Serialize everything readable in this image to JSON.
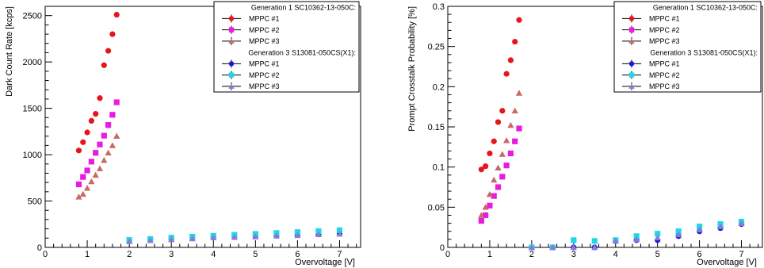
{
  "chart_data": [
    {
      "type": "scatter",
      "xlabel": "Overvoltage [V]",
      "ylabel": "Dark Count Rate [kcps]",
      "xlim": [
        0,
        7.5
      ],
      "ylim": [
        0,
        2600
      ],
      "xticks": [
        "0",
        "1",
        "2",
        "3",
        "4",
        "5",
        "6",
        "7"
      ],
      "yticks": [
        "0",
        "500",
        "1000",
        "1500",
        "2000",
        "2500"
      ],
      "xtick_values": [
        0,
        1,
        2,
        3,
        4,
        5,
        6,
        7
      ],
      "ytick_values": [
        0,
        500,
        1000,
        1500,
        2000,
        2500
      ],
      "legend_placement": "top-right",
      "legend_groups": [
        "Generation 1 SC10362-13-050C:",
        "Generation 3 S13081-050CS(X1):"
      ],
      "series": [
        {
          "name": "MPPC #1",
          "group": 0,
          "color": "#e8141b",
          "marker": "circle",
          "x": [
            0.8,
            0.9,
            1.0,
            1.1,
            1.2,
            1.3,
            1.4,
            1.5,
            1.6,
            1.7
          ],
          "y": [
            1045,
            1135,
            1240,
            1365,
            1440,
            1610,
            1965,
            2120,
            2300,
            2510
          ]
        },
        {
          "name": "MPPC #2",
          "group": 0,
          "color": "#e81ce0",
          "marker": "square",
          "x": [
            0.8,
            0.9,
            1.0,
            1.1,
            1.2,
            1.3,
            1.4,
            1.5,
            1.6,
            1.7
          ],
          "y": [
            680,
            760,
            830,
            925,
            1020,
            1110,
            1205,
            1320,
            1430,
            1565
          ]
        },
        {
          "name": "MPPC #3",
          "group": 0,
          "color": "#c86a64",
          "marker": "triangle",
          "x": [
            0.8,
            0.9,
            1.0,
            1.1,
            1.2,
            1.3,
            1.4,
            1.5,
            1.6,
            1.7
          ],
          "y": [
            545,
            575,
            640,
            710,
            780,
            850,
            940,
            1020,
            1100,
            1200
          ]
        },
        {
          "name": "MPPC #1",
          "group": 1,
          "color": "#1a1ad4",
          "marker": "circle",
          "x": [
            2.0,
            2.5,
            3.0,
            3.5,
            4.0,
            4.5,
            5.0,
            5.5,
            6.0,
            6.5,
            7.0
          ],
          "y": [
            70,
            80,
            90,
            100,
            110,
            115,
            120,
            125,
            135,
            140,
            150
          ]
        },
        {
          "name": "MPPC #2",
          "group": 1,
          "color": "#1ed8e8",
          "marker": "square",
          "x": [
            2.0,
            2.5,
            3.0,
            3.5,
            4.0,
            4.5,
            5.0,
            5.5,
            6.0,
            6.5,
            7.0
          ],
          "y": [
            80,
            90,
            105,
            115,
            125,
            135,
            145,
            155,
            165,
            175,
            185
          ]
        },
        {
          "name": "MPPC #3",
          "group": 1,
          "color": "#8a7ad6",
          "marker": "triangle",
          "x": [
            2.0,
            2.5,
            3.0,
            3.5,
            4.0,
            4.5,
            5.0,
            5.5,
            6.0,
            6.5,
            7.0
          ],
          "y": [
            65,
            75,
            85,
            95,
            105,
            110,
            115,
            125,
            130,
            140,
            145
          ]
        }
      ]
    },
    {
      "type": "scatter",
      "xlabel": "Overvoltage [V]",
      "ylabel": "Prompt Crosstalk Probability [%]",
      "xlim": [
        0,
        7.5
      ],
      "ylim": [
        0,
        0.3
      ],
      "xticks": [
        "0",
        "1",
        "2",
        "3",
        "4",
        "5",
        "6",
        "7"
      ],
      "yticks": [
        "0",
        "0.05",
        "0.1",
        "0.15",
        "0.2",
        "0.25",
        "0.3"
      ],
      "xtick_values": [
        0,
        1,
        2,
        3,
        4,
        5,
        6,
        7
      ],
      "ytick_values": [
        0,
        0.05,
        0.1,
        0.15,
        0.2,
        0.25,
        0.3
      ],
      "legend_placement": "top-right",
      "legend_groups": [
        "Generation 1 SC10362-13-050C:",
        "Generation 3 S13081-050CS(X1):"
      ],
      "series": [
        {
          "name": "MPPC #1",
          "group": 0,
          "color": "#e8141b",
          "marker": "circle",
          "x": [
            0.8,
            0.9,
            1.0,
            1.1,
            1.2,
            1.3,
            1.4,
            1.5,
            1.6,
            1.7
          ],
          "y": [
            0.097,
            0.101,
            0.117,
            0.132,
            0.156,
            0.17,
            0.216,
            0.233,
            0.256,
            0.283
          ]
        },
        {
          "name": "MPPC #2",
          "group": 0,
          "color": "#e81ce0",
          "marker": "square",
          "x": [
            0.8,
            0.9,
            1.0,
            1.1,
            1.2,
            1.3,
            1.4,
            1.5,
            1.6,
            1.7
          ],
          "y": [
            0.033,
            0.04,
            0.052,
            0.064,
            0.075,
            0.088,
            0.102,
            0.117,
            0.132,
            0.148
          ]
        },
        {
          "name": "MPPC #3",
          "group": 0,
          "color": "#c86a64",
          "marker": "triangle",
          "x": [
            0.8,
            0.9,
            1.0,
            1.1,
            1.2,
            1.3,
            1.4,
            1.5,
            1.6,
            1.7
          ],
          "y": [
            0.04,
            0.05,
            0.066,
            0.084,
            0.099,
            0.116,
            0.133,
            0.152,
            0.17,
            0.192
          ]
        },
        {
          "name": "MPPC #1",
          "group": 1,
          "color": "#1a1ad4",
          "marker": "circle",
          "x": [
            2.0,
            2.5,
            3.0,
            3.5,
            4.0,
            4.5,
            5.0,
            5.5,
            6.0,
            6.5,
            7.0
          ],
          "y": [
            0.0,
            0.0,
            0.0,
            0.0,
            0.008,
            0.009,
            0.009,
            0.014,
            0.02,
            0.024,
            0.029
          ]
        },
        {
          "name": "MPPC #2",
          "group": 1,
          "color": "#1ed8e8",
          "marker": "square",
          "x": [
            2.0,
            2.5,
            3.0,
            3.5,
            4.0,
            4.5,
            5.0,
            5.5,
            6.0,
            6.5,
            7.0
          ],
          "y": [
            0.0,
            0.0,
            0.009,
            0.008,
            0.009,
            0.014,
            0.017,
            0.02,
            0.026,
            0.029,
            0.032
          ]
        },
        {
          "name": "MPPC #3",
          "group": 1,
          "color": "#8a7ad6",
          "marker": "triangle",
          "x": [
            2.0,
            2.5,
            3.0,
            3.5,
            4.0,
            4.5,
            5.0,
            5.5,
            6.0,
            6.5,
            7.0
          ],
          "y": [
            0.0,
            0.0,
            0.0,
            0.0,
            0.008,
            0.01,
            0.012,
            0.016,
            0.022,
            0.026,
            0.03
          ]
        }
      ]
    }
  ]
}
